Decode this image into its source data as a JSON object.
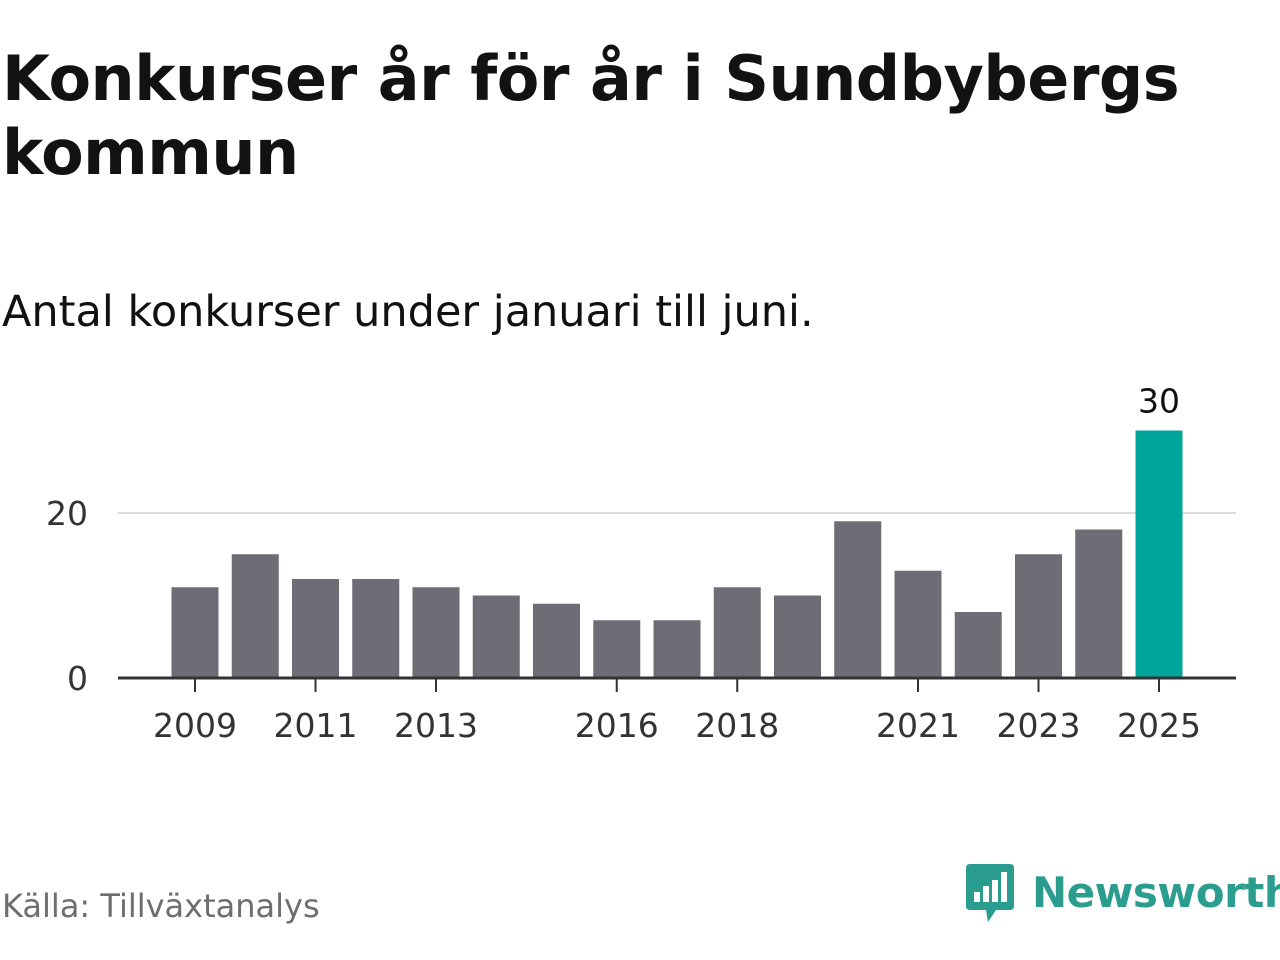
{
  "title": "Konkurser år för år i Sundbybergs kommun",
  "subtitle": "Antal konkurser under januari till juni.",
  "source": "Källa: Tillväxtanalys",
  "brand": {
    "name": "Newsworthy",
    "logo_icon": "newsworthy-bar-chart-speech-bubble-icon",
    "color": "#2a9d8f"
  },
  "colors": {
    "bar": "#6e6d75",
    "highlight": "#00a599",
    "gridline": "#dddddd",
    "axis": "#333333"
  },
  "chart_data": {
    "type": "bar",
    "title": "",
    "xlabel": "",
    "ylabel": "",
    "categories": [
      "2009",
      "2010",
      "2011",
      "2012",
      "2013",
      "2014",
      "2015",
      "2016",
      "2017",
      "2018",
      "2019",
      "2020",
      "2021",
      "2022",
      "2023",
      "2024",
      "2025"
    ],
    "values": [
      11,
      15,
      12,
      12,
      11,
      10,
      9,
      7,
      7,
      11,
      10,
      19,
      13,
      8,
      15,
      18,
      30
    ],
    "highlight_category": "2025",
    "data_labels": [
      {
        "category": "2025",
        "text": "30"
      }
    ],
    "ylim": [
      0,
      30
    ],
    "y_ticks": [
      0,
      20
    ],
    "y_tick_labels": [
      "0",
      "20"
    ],
    "x_tick_labels": [
      "2009",
      "2011",
      "2013",
      "2016",
      "2018",
      "2021",
      "2023",
      "2025"
    ],
    "grid": "horizontal",
    "legend": "none"
  }
}
